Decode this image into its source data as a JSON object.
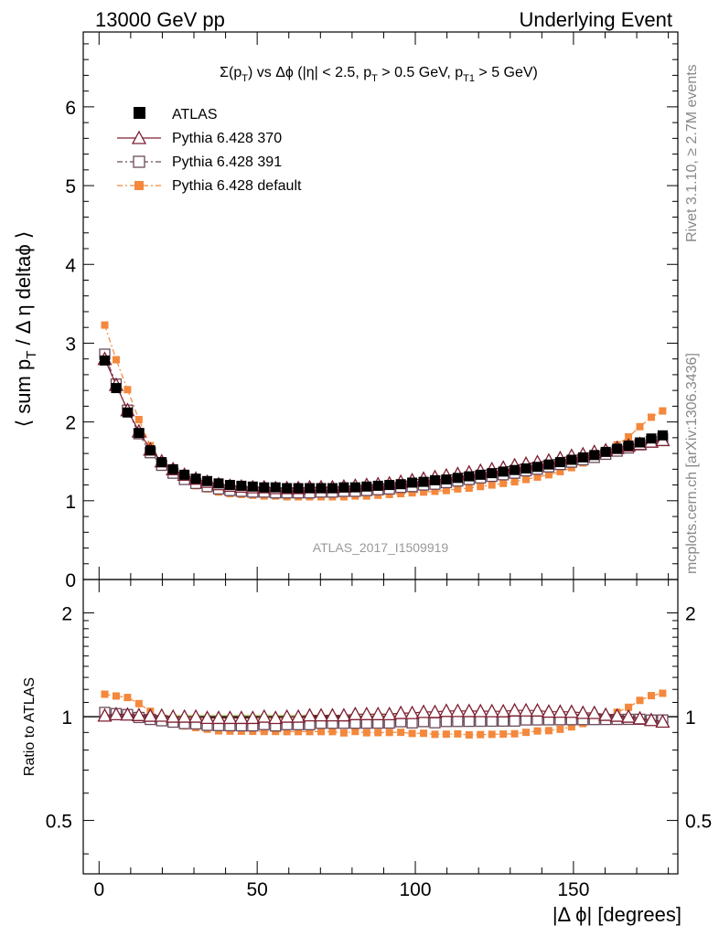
{
  "header": {
    "left_label": "13000 GeV pp",
    "right_label": "Underlying Event"
  },
  "side_labels": {
    "rivet": "Rivet 3.1.10, ≥ 2.7M events",
    "mcplots": "mcplots.cern.ch [arXiv:1306.3436]"
  },
  "chart_data": [
    {
      "type": "scatter",
      "title_parts": {
        "sigma": "Σ(p",
        "sub_t": "T",
        "vs": ") vs Δϕ (|η| < 2.5, p",
        "sub_t2": "T",
        "cut1": " > 0.5 GeV, p",
        "sub_t1": "T1",
        "cut2": " > 5 GeV)"
      },
      "ylabel_parts": {
        "main": "⟨ sum p",
        "sub": "T",
        "rest": " / Δ η deltaϕ ⟩"
      },
      "xlabel": "|Δ ϕ| [degrees]",
      "xlim": [
        -5,
        183
      ],
      "ylim": [
        0,
        6.95
      ],
      "yticks": [
        0,
        1,
        2,
        3,
        4,
        5,
        6
      ],
      "grid": false,
      "legend_position": "top-left",
      "watermark": "ATLAS_2017_I1509919",
      "x": [
        1.8,
        5.4,
        9.0,
        12.6,
        16.2,
        19.8,
        23.4,
        27.0,
        30.6,
        34.2,
        37.8,
        41.4,
        45.0,
        48.6,
        52.2,
        55.8,
        59.4,
        63.0,
        66.6,
        70.2,
        73.8,
        77.4,
        81.0,
        84.6,
        88.2,
        91.8,
        95.4,
        99.0,
        102.6,
        106.2,
        109.8,
        113.4,
        117.0,
        120.6,
        124.2,
        127.8,
        131.4,
        135.0,
        138.6,
        142.2,
        145.8,
        149.4,
        153.0,
        156.6,
        160.2,
        163.8,
        167.4,
        171.0,
        174.6,
        178.2
      ],
      "series": [
        {
          "name": "ATLAS",
          "color": "#000000",
          "marker": "filled-square",
          "values": [
            2.78,
            2.43,
            2.12,
            1.86,
            1.64,
            1.49,
            1.4,
            1.33,
            1.28,
            1.25,
            1.22,
            1.2,
            1.19,
            1.18,
            1.17,
            1.17,
            1.16,
            1.16,
            1.16,
            1.16,
            1.16,
            1.17,
            1.17,
            1.18,
            1.19,
            1.2,
            1.21,
            1.23,
            1.24,
            1.26,
            1.27,
            1.29,
            1.31,
            1.33,
            1.35,
            1.37,
            1.39,
            1.41,
            1.43,
            1.46,
            1.49,
            1.52,
            1.55,
            1.58,
            1.62,
            1.66,
            1.7,
            1.74,
            1.79,
            1.83
          ]
        },
        {
          "name": "Pythia 6.428 370",
          "color": "#7d1e30",
          "marker": "open-triangle",
          "values": [
            2.8,
            2.47,
            2.15,
            1.88,
            1.65,
            1.5,
            1.4,
            1.33,
            1.28,
            1.24,
            1.21,
            1.19,
            1.18,
            1.17,
            1.17,
            1.16,
            1.16,
            1.16,
            1.17,
            1.17,
            1.17,
            1.18,
            1.19,
            1.2,
            1.21,
            1.22,
            1.24,
            1.26,
            1.28,
            1.3,
            1.32,
            1.34,
            1.36,
            1.38,
            1.4,
            1.42,
            1.45,
            1.47,
            1.49,
            1.51,
            1.54,
            1.57,
            1.59,
            1.62,
            1.64,
            1.67,
            1.7,
            1.72,
            1.75,
            1.77
          ]
        },
        {
          "name": "Pythia 6.428 391",
          "color": "#6b4a5c",
          "marker": "open-square",
          "values": [
            2.86,
            2.48,
            2.15,
            1.85,
            1.61,
            1.45,
            1.35,
            1.27,
            1.22,
            1.18,
            1.15,
            1.13,
            1.12,
            1.11,
            1.11,
            1.1,
            1.1,
            1.1,
            1.1,
            1.11,
            1.11,
            1.12,
            1.12,
            1.13,
            1.14,
            1.15,
            1.17,
            1.18,
            1.2,
            1.21,
            1.23,
            1.25,
            1.27,
            1.29,
            1.31,
            1.33,
            1.35,
            1.38,
            1.4,
            1.43,
            1.46,
            1.49,
            1.52,
            1.55,
            1.59,
            1.63,
            1.67,
            1.71,
            1.75,
            1.79
          ]
        },
        {
          "name": "Pythia 6.428 default",
          "color": "#f4883c",
          "marker": "filled-square",
          "values": [
            3.23,
            2.79,
            2.41,
            2.03,
            1.7,
            1.47,
            1.34,
            1.25,
            1.19,
            1.15,
            1.11,
            1.09,
            1.08,
            1.07,
            1.06,
            1.06,
            1.05,
            1.05,
            1.05,
            1.05,
            1.05,
            1.05,
            1.06,
            1.06,
            1.07,
            1.08,
            1.09,
            1.1,
            1.11,
            1.12,
            1.13,
            1.15,
            1.16,
            1.18,
            1.2,
            1.22,
            1.24,
            1.27,
            1.3,
            1.33,
            1.37,
            1.42,
            1.48,
            1.54,
            1.62,
            1.71,
            1.81,
            1.94,
            2.06,
            2.14
          ]
        }
      ]
    },
    {
      "type": "scatter",
      "ylabel": "Ratio to ATLAS",
      "xlabel": "|Δ ϕ| [degrees]",
      "xlim": [
        -5,
        183
      ],
      "ylim_log": [
        0.35,
        2.5
      ],
      "yscale": "log",
      "yticks": [
        0.5,
        1,
        2
      ],
      "xticks": [
        0,
        50,
        100,
        150
      ],
      "band_color": "#c8e59a",
      "band_halfwidth": 0.015
    }
  ]
}
